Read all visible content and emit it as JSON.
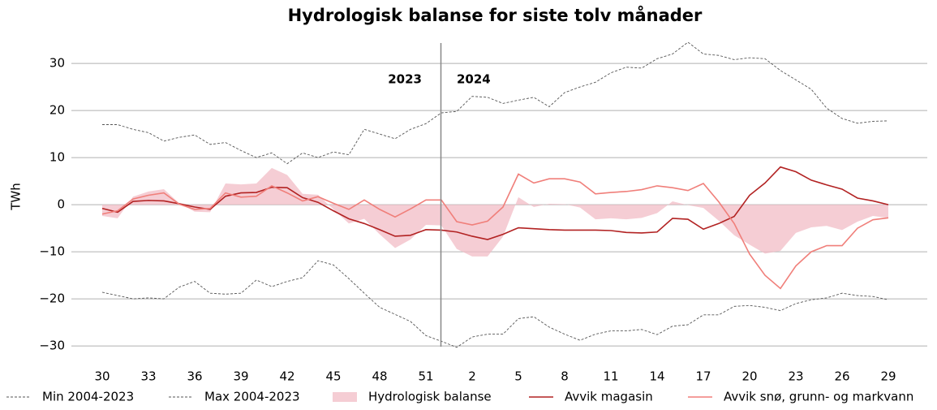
{
  "chart_data": {
    "type": "line",
    "title": "Hydrologisk balanse for siste tolv månader",
    "ylabel": "TWh",
    "annotations": [
      "2023",
      "2024"
    ],
    "categories": [
      "30",
      null,
      null,
      "33",
      null,
      null,
      "36",
      null,
      null,
      "39",
      null,
      null,
      "42",
      null,
      null,
      "45",
      null,
      null,
      "48",
      null,
      null,
      "51",
      null,
      null,
      "2",
      null,
      null,
      "5",
      null,
      null,
      "8",
      null,
      null,
      "11",
      null,
      null,
      "14",
      null,
      null,
      "17",
      null,
      null,
      "20",
      null,
      null,
      "23",
      null,
      null,
      "26",
      null,
      null,
      "29"
    ],
    "ylim": [
      -30.5,
      34.5
    ],
    "yticks": [
      {
        "value": -30,
        "label": "−30"
      },
      {
        "value": -20,
        "label": "−20"
      },
      {
        "value": -10,
        "label": "−10"
      },
      0,
      10,
      20,
      30
    ],
    "grid": true,
    "series": [
      {
        "name": "Min 2004-2023",
        "color": "#555555",
        "style": "dashed",
        "values": [
          -18.6,
          -19.3,
          -20,
          -19.8,
          -20,
          -17.5,
          -16.3,
          -18.8,
          -19,
          -18.8,
          -16,
          -17.4,
          -16.3,
          -15.5,
          -11.9,
          -12.8,
          -15.7,
          -18.8,
          -21.8,
          -23.3,
          -24.8,
          -27.8,
          -29,
          -30.3,
          -28.1,
          -27.5,
          -27.5,
          -24.2,
          -23.8,
          -26,
          -27.5,
          -28.8,
          -27.5,
          -26.8,
          -26.8,
          -26.5,
          -27.6,
          -25.8,
          -25.5,
          -23.4,
          -23.4,
          -21.6,
          -21.4,
          -21.8,
          -22.5,
          -21,
          -20.2,
          -19.8,
          -18.8,
          -19.3,
          -19.5,
          -20.2
        ]
      },
      {
        "name": "Max 2004-2023",
        "color": "#555555",
        "style": "dashed",
        "values": [
          17,
          17,
          16,
          15.3,
          13.5,
          14.3,
          14.8,
          12.8,
          13.2,
          11.5,
          10,
          11,
          8.7,
          11,
          10,
          11.2,
          10.6,
          16,
          15,
          14,
          16,
          17.2,
          19.5,
          19.8,
          23,
          22.8,
          21.5,
          22.2,
          22.8,
          20.8,
          23.8,
          25,
          26,
          28,
          29.2,
          29,
          31,
          32,
          34.5,
          32,
          31.7,
          30.8,
          31.2,
          31,
          28.5,
          26.5,
          24.5,
          20.5,
          18.3,
          17.3,
          17.7,
          17.8
        ]
      },
      {
        "name": "Hydrologisk balanse",
        "color": "#f2bcc6",
        "style": "area",
        "values": [
          -2.4,
          -2.9,
          1.7,
          2.8,
          3.3,
          0.3,
          -1.5,
          -1.6,
          4.5,
          4.3,
          4.5,
          7.8,
          6.3,
          2.3,
          2.1,
          -1,
          -4,
          -3,
          -6.3,
          -9.2,
          -7.4,
          -4.3,
          -4.4,
          -9.4,
          -11,
          -11,
          -6.8,
          1.6,
          -0.5,
          0.2,
          0.1,
          -0.6,
          -3.1,
          -2.9,
          -3.1,
          -2.8,
          -1.8,
          0.7,
          -0.1,
          -0.7,
          -3.4,
          -6.5,
          -8.5,
          -10.4,
          -9.8,
          -6,
          -4.8,
          -4.5,
          -5.4,
          -3.6,
          -2.4,
          -2.8
        ]
      },
      {
        "name": "Avvik magasin",
        "color": "#b22222",
        "style": "solid",
        "values": [
          -0.8,
          -1.6,
          0.7,
          0.9,
          0.8,
          0.2,
          -0.5,
          -1,
          1.8,
          2.5,
          2.6,
          3.7,
          3.6,
          1.5,
          0.5,
          -1.3,
          -3,
          -4,
          -5.3,
          -6.7,
          -6.5,
          -5.3,
          -5.4,
          -5.8,
          -6.7,
          -7.4,
          -6.3,
          -4.9,
          -5.1,
          -5.3,
          -5.4,
          -5.4,
          -5.4,
          -5.5,
          -5.9,
          -6,
          -5.8,
          -2.9,
          -3.1,
          -5.2,
          -4,
          -2.5,
          2,
          4.6,
          8,
          7,
          5.2,
          4.2,
          3.3,
          1.4,
          0.8,
          0
        ]
      },
      {
        "name": "Avvik snø, grunn- og markvann",
        "color": "#f07f7a",
        "style": "solid",
        "values": [
          -2,
          -1.3,
          1.2,
          2,
          2.5,
          0.1,
          -1,
          -0.8,
          2.5,
          1.6,
          1.8,
          4,
          2.5,
          0.8,
          1.7,
          0.3,
          -1,
          1,
          -1,
          -2.6,
          -0.9,
          1,
          1,
          -3.6,
          -4.3,
          -3.5,
          -0.5,
          6.5,
          4.6,
          5.5,
          5.5,
          4.8,
          2.3,
          2.6,
          2.8,
          3.2,
          4,
          3.6,
          3,
          4.5,
          0.6,
          -4,
          -10.5,
          -15,
          -17.8,
          -13,
          -10,
          -8.7,
          -8.7,
          -5,
          -3.2,
          -2.8
        ]
      }
    ]
  }
}
